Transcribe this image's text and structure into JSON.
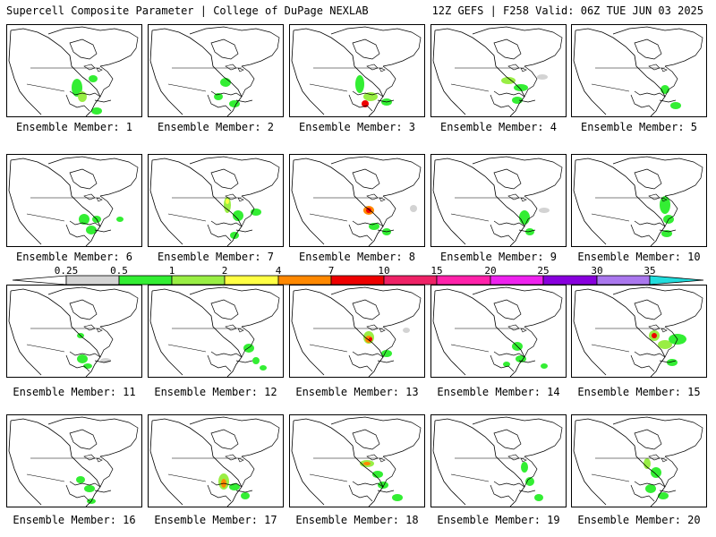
{
  "header": {
    "left_title": "Supercell Composite Parameter | College of DuPage NEXLAB",
    "right_title": "12Z GEFS | F258 Valid: 06Z TUE JUN 03 2025"
  },
  "members": [
    {
      "caption": "Ensemble Member: 1"
    },
    {
      "caption": "Ensemble Member: 2"
    },
    {
      "caption": "Ensemble Member: 3"
    },
    {
      "caption": "Ensemble Member: 4"
    },
    {
      "caption": "Ensemble Member: 5"
    },
    {
      "caption": "Ensemble Member: 6"
    },
    {
      "caption": "Ensemble Member: 7"
    },
    {
      "caption": "Ensemble Member: 8"
    },
    {
      "caption": "Ensemble Member: 9"
    },
    {
      "caption": "Ensemble Member: 10"
    },
    {
      "caption": "Ensemble Member: 11"
    },
    {
      "caption": "Ensemble Member: 12"
    },
    {
      "caption": "Ensemble Member: 13"
    },
    {
      "caption": "Ensemble Member: 14"
    },
    {
      "caption": "Ensemble Member: 15"
    },
    {
      "caption": "Ensemble Member: 16"
    },
    {
      "caption": "Ensemble Member: 17"
    },
    {
      "caption": "Ensemble Member: 18"
    },
    {
      "caption": "Ensemble Member: 19"
    },
    {
      "caption": "Ensemble Member: 20"
    }
  ],
  "colorbar": {
    "levels": [
      "0.25",
      "0.5",
      "1",
      "2",
      "4",
      "7",
      "10",
      "15",
      "20",
      "25",
      "30",
      "35"
    ],
    "colors": [
      "#ffffff",
      "#d3d3d3",
      "#33ee33",
      "#99ee44",
      "#ffff44",
      "#ff8800",
      "#ee0000",
      "#ee2266",
      "#ff22aa",
      "#ee22ee",
      "#8800dd",
      "#aa77ee",
      "#22dddd"
    ]
  }
}
